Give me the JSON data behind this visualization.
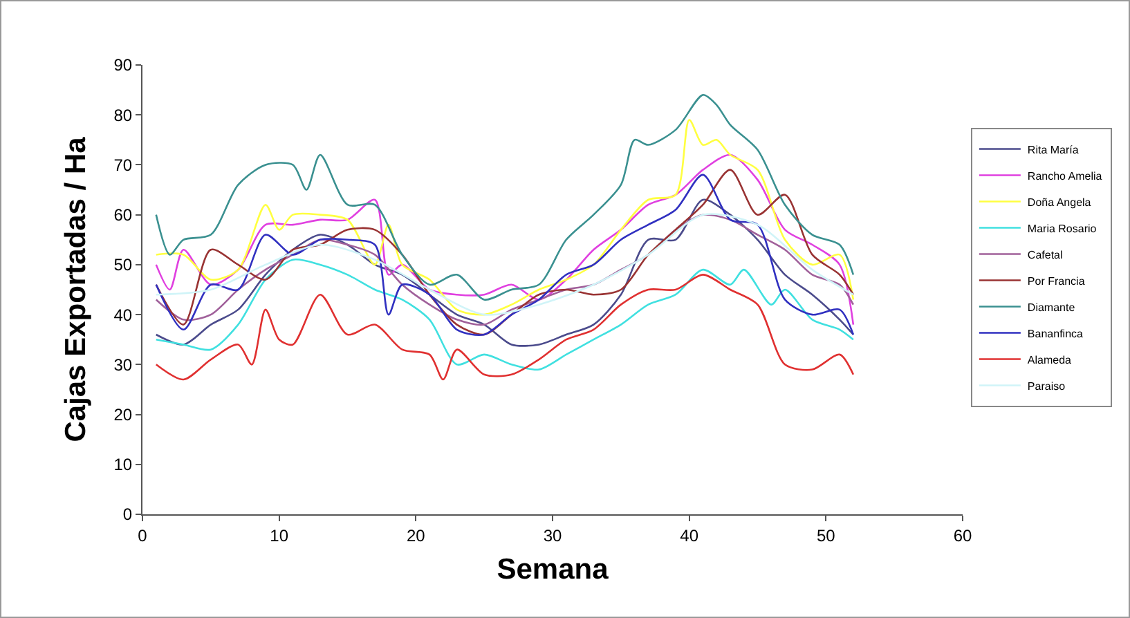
{
  "chart_data": {
    "type": "line",
    "xlabel": "Semana",
    "ylabel": "Cajas Exportadas / Ha",
    "xlim": [
      0,
      60
    ],
    "xticks": [
      0,
      10,
      20,
      30,
      40,
      50,
      60
    ],
    "ylim": [
      0,
      90
    ],
    "yticks": [
      0,
      10,
      20,
      30,
      40,
      50,
      60,
      70,
      80,
      90
    ],
    "grid": false,
    "legend": "right",
    "marker": "none",
    "line_style": "solid",
    "series": [
      {
        "name": "Rita María",
        "color": "#4b4b8c",
        "x": [
          1,
          3,
          5,
          7,
          9,
          11,
          13,
          15,
          17,
          19,
          21,
          23,
          25,
          27,
          29,
          31,
          33,
          35,
          37,
          39,
          41,
          43,
          45,
          47,
          49,
          51,
          52
        ],
        "values": [
          36,
          34,
          38,
          41,
          48,
          53,
          56,
          54,
          50,
          48,
          44,
          40,
          38,
          34,
          34,
          36,
          38,
          44,
          55,
          55,
          63,
          60,
          55,
          48,
          44,
          39,
          36
        ]
      },
      {
        "name": "Rancho Amelia",
        "color": "#e040e0",
        "x": [
          1,
          2,
          3,
          5,
          7,
          9,
          11,
          13,
          15,
          17,
          18,
          19,
          21,
          23,
          25,
          27,
          29,
          31,
          33,
          35,
          37,
          39,
          41,
          43,
          45,
          47,
          49,
          51,
          52
        ],
        "values": [
          50,
          45,
          53,
          46,
          49,
          58,
          58,
          59,
          59,
          63,
          48,
          50,
          45,
          44,
          44,
          46,
          43,
          47,
          53,
          57,
          62,
          64,
          69,
          72,
          67,
          57,
          54,
          50,
          38
        ]
      },
      {
        "name": "Doña Angela",
        "color": "#ffff40",
        "x": [
          1,
          3,
          5,
          7,
          9,
          10,
          11,
          13,
          15,
          17,
          18,
          19,
          21,
          23,
          25,
          27,
          29,
          31,
          33,
          35,
          37,
          39,
          40,
          41,
          42,
          43,
          45,
          47,
          49,
          51,
          52
        ],
        "values": [
          52,
          52,
          47,
          49,
          62,
          57,
          60,
          60,
          59,
          50,
          58,
          50,
          47,
          41,
          40,
          42,
          45,
          47,
          50,
          57,
          63,
          64,
          79,
          74,
          75,
          72,
          69,
          55,
          50,
          52,
          43
        ]
      },
      {
        "name": "Maria Rosario",
        "color": "#40e0e0",
        "x": [
          1,
          3,
          5,
          7,
          9,
          11,
          13,
          15,
          17,
          19,
          21,
          23,
          25,
          27,
          29,
          31,
          33,
          35,
          37,
          39,
          41,
          43,
          44,
          46,
          47,
          49,
          51,
          52
        ],
        "values": [
          35,
          34,
          33,
          38,
          47,
          51,
          50,
          48,
          45,
          43,
          39,
          30,
          32,
          30,
          29,
          32,
          35,
          38,
          42,
          44,
          49,
          46,
          49,
          42,
          45,
          39,
          37,
          35
        ]
      },
      {
        "name": "Cafetal",
        "color": "#a0609a",
        "x": [
          1,
          3,
          5,
          7,
          9,
          11,
          13,
          15,
          17,
          19,
          21,
          23,
          25,
          27,
          29,
          31,
          33,
          35,
          37,
          39,
          41,
          43,
          45,
          47,
          49,
          51,
          52
        ],
        "values": [
          43,
          39,
          40,
          45,
          49,
          52,
          55,
          54,
          52,
          46,
          42,
          39,
          38,
          41,
          43,
          45,
          46,
          49,
          52,
          57,
          60,
          59,
          56,
          53,
          48,
          46,
          42
        ]
      },
      {
        "name": "Por Francia",
        "color": "#993333",
        "x": [
          1,
          3,
          5,
          7,
          9,
          11,
          13,
          15,
          17,
          19,
          21,
          23,
          25,
          27,
          29,
          31,
          33,
          35,
          37,
          39,
          41,
          43,
          45,
          47,
          49,
          51,
          52
        ],
        "values": [
          46,
          38,
          53,
          50,
          47,
          53,
          54,
          57,
          57,
          52,
          44,
          38,
          36,
          40,
          44,
          45,
          44,
          45,
          52,
          57,
          62,
          69,
          60,
          64,
          52,
          48,
          44
        ]
      },
      {
        "name": "Diamante",
        "color": "#3a9090",
        "x": [
          1,
          2,
          3,
          5,
          7,
          9,
          11,
          12,
          13,
          15,
          17,
          19,
          21,
          23,
          25,
          27,
          29,
          31,
          33,
          35,
          36,
          37,
          39,
          41,
          42,
          43,
          45,
          47,
          49,
          51,
          52
        ],
        "values": [
          60,
          52,
          55,
          56,
          66,
          70,
          70,
          65,
          72,
          62,
          62,
          52,
          46,
          48,
          43,
          45,
          46,
          55,
          60,
          66,
          75,
          74,
          77,
          84,
          82,
          78,
          73,
          62,
          56,
          54,
          48
        ]
      },
      {
        "name": "Bananfinca",
        "color": "#3030c0",
        "x": [
          1,
          3,
          5,
          7,
          9,
          11,
          13,
          15,
          17,
          18,
          19,
          21,
          23,
          25,
          27,
          29,
          31,
          33,
          35,
          37,
          39,
          41,
          43,
          45,
          47,
          49,
          51,
          52
        ],
        "values": [
          46,
          37,
          46,
          45,
          56,
          52,
          55,
          55,
          54,
          40,
          46,
          44,
          37,
          36,
          40,
          43,
          48,
          50,
          55,
          58,
          61,
          68,
          59,
          58,
          43,
          40,
          41,
          36
        ]
      },
      {
        "name": "Alameda",
        "color": "#e03030",
        "x": [
          1,
          3,
          5,
          7,
          8,
          9,
          10,
          11,
          13,
          15,
          17,
          19,
          21,
          22,
          23,
          25,
          27,
          29,
          31,
          33,
          35,
          37,
          39,
          41,
          43,
          45,
          47,
          49,
          51,
          52
        ],
        "values": [
          30,
          27,
          31,
          34,
          30,
          41,
          35,
          34,
          44,
          36,
          38,
          33,
          32,
          27,
          33,
          28,
          28,
          31,
          35,
          37,
          42,
          45,
          45,
          48,
          45,
          42,
          30,
          29,
          32,
          28
        ]
      },
      {
        "name": "Paraiso",
        "color": "#d0f4f8",
        "x": [
          1,
          5,
          9,
          13,
          17,
          21,
          25,
          29,
          33,
          37,
          41,
          45,
          49,
          52
        ],
        "values": [
          44,
          45,
          50,
          54,
          51,
          45,
          40,
          42,
          46,
          52,
          60,
          58,
          49,
          44
        ]
      }
    ]
  }
}
